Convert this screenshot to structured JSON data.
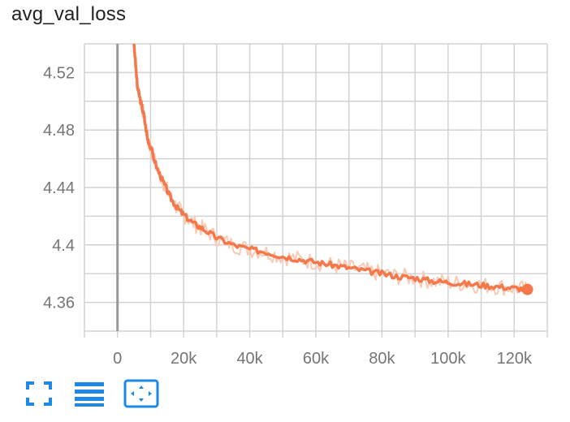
{
  "title": "avg_val_loss",
  "colors": {
    "series": "#f4784a",
    "series_raw": "#f9c9b4",
    "grid": "#d3d3d3",
    "zero_axis": "#999999",
    "tick_text": "#757575",
    "icon": "#1e88e5"
  },
  "toolbar": {
    "buttons": [
      {
        "name": "fullscreen-icon"
      },
      {
        "name": "data-table-icon"
      },
      {
        "name": "fit-domain-icon"
      }
    ]
  },
  "chart_data": {
    "type": "line",
    "title": "avg_val_loss",
    "xlabel": "",
    "ylabel": "",
    "xlim": [
      -10000,
      130000
    ],
    "ylim": [
      4.34,
      4.54
    ],
    "x_ticks": [
      0,
      20000,
      40000,
      60000,
      80000,
      100000,
      120000
    ],
    "x_tick_labels": [
      "0",
      "20k",
      "40k",
      "60k",
      "80k",
      "100k",
      "120k"
    ],
    "y_ticks": [
      4.36,
      4.4,
      4.44,
      4.48,
      4.52
    ],
    "y_tick_labels": [
      "4.36",
      "4.4",
      "4.44",
      "4.48",
      "4.52"
    ],
    "grid": true,
    "series": [
      {
        "x": [
          5000,
          6000,
          7000,
          8000,
          9000,
          10000,
          12000,
          14000,
          16000,
          18000,
          20000,
          23000,
          26000,
          30000,
          35000,
          40000,
          45000,
          50000,
          55000,
          60000,
          65000,
          70000,
          75000,
          80000,
          85000,
          90000,
          95000,
          100000,
          105000,
          110000,
          115000,
          120000,
          124000
        ],
        "values": [
          4.54,
          4.51,
          4.5,
          4.49,
          4.475,
          4.468,
          4.453,
          4.443,
          4.433,
          4.426,
          4.421,
          4.415,
          4.411,
          4.405,
          4.4,
          4.397,
          4.395,
          4.392,
          4.39,
          4.388,
          4.386,
          4.384,
          4.382,
          4.38,
          4.378,
          4.377,
          4.375,
          4.374,
          4.373,
          4.372,
          4.371,
          4.37,
          4.369
        ]
      }
    ]
  }
}
